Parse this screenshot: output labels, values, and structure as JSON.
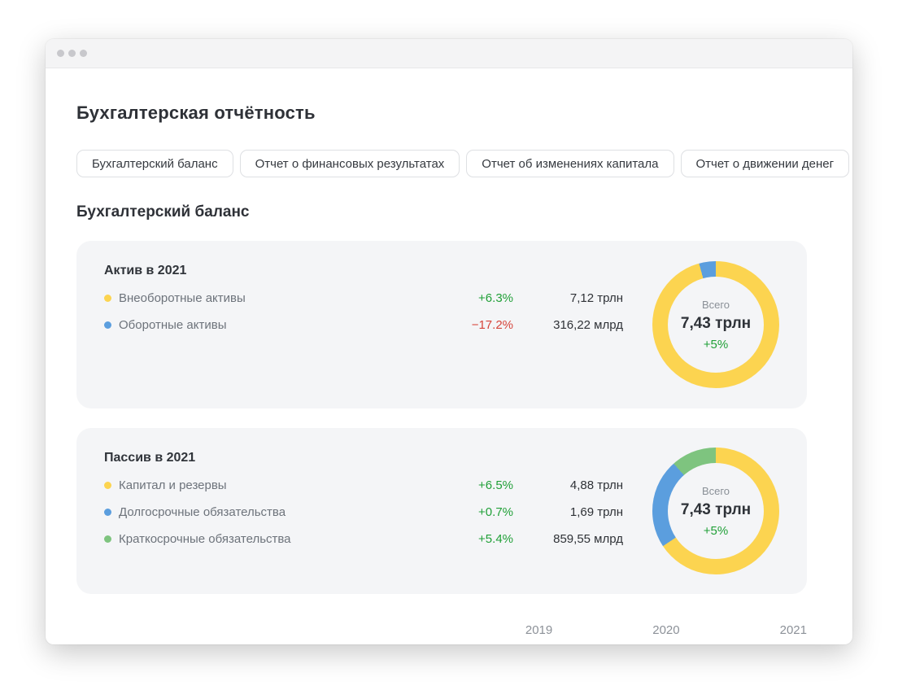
{
  "page": {
    "title": "Бухгалтерская отчётность",
    "section_title": "Бухгалтерский баланс",
    "tabs": [
      {
        "label": "Бухгалтерский баланс"
      },
      {
        "label": "Отчет о финансовых результатах"
      },
      {
        "label": "Отчет об изменениях капитала"
      },
      {
        "label": "Отчет о движении денег"
      }
    ],
    "years": [
      "2019",
      "2020",
      "2021"
    ]
  },
  "colors": {
    "yellow": "#FCD450",
    "blue": "#5B9EDE",
    "green_segment": "#7EC47F",
    "positive": "#21A038",
    "negative": "#D6453B",
    "card_bg": "#F4F5F7"
  },
  "cards": [
    {
      "title": "Актив в 2021",
      "rows": [
        {
          "dot": "#FCD450",
          "label": "Внеоборотные активы",
          "change": "+6.3%",
          "change_color": "#21A038",
          "value": "7,12 трлн"
        },
        {
          "dot": "#5B9EDE",
          "label": "Оборотные активы",
          "change": "−17.2%",
          "change_color": "#D6453B",
          "value": "316,22 млрд"
        }
      ],
      "donut_center": {
        "label": "Всего",
        "value": "7,43 трлн",
        "change": "+5%",
        "change_color": "#21A038"
      }
    },
    {
      "title": "Пассив в 2021",
      "rows": [
        {
          "dot": "#FCD450",
          "label": "Капитал и резервы",
          "change": "+6.5%",
          "change_color": "#21A038",
          "value": "4,88 трлн"
        },
        {
          "dot": "#5B9EDE",
          "label": "Долгосрочные обязательства",
          "change": "+0.7%",
          "change_color": "#21A038",
          "value": "1,69 трлн"
        },
        {
          "dot": "#7EC47F",
          "label": "Краткосрочные обязательства",
          "change": "+5.4%",
          "change_color": "#21A038",
          "value": "859,55 млрд"
        }
      ],
      "donut_center": {
        "label": "Всего",
        "value": "7,43 трлн",
        "change": "+5%",
        "change_color": "#21A038"
      }
    }
  ],
  "chart_data": [
    {
      "type": "pie",
      "title": "Актив в 2021",
      "categories": [
        "Внеоборотные активы",
        "Оборотные активы"
      ],
      "values": [
        7120,
        316.22
      ],
      "unit": "млрд руб",
      "colors": [
        "#FCD450",
        "#5B9EDE"
      ],
      "donut": true,
      "start_angle_deg": 0,
      "direction": "clockwise",
      "center_label": "Всего",
      "center_value": "7,43 трлн",
      "center_change": "+5%",
      "legend_position": "left",
      "changes": [
        "+6.3%",
        "−17.2%"
      ],
      "display_values": [
        "7,12 трлн",
        "316,22 млрд"
      ]
    },
    {
      "type": "pie",
      "title": "Пассив в 2021",
      "categories": [
        "Капитал и резервы",
        "Долгосрочные обязательства",
        "Краткосрочные обязательства"
      ],
      "values": [
        4880,
        1690,
        859.55
      ],
      "unit": "млрд руб",
      "colors": [
        "#FCD450",
        "#5B9EDE",
        "#7EC47F"
      ],
      "donut": true,
      "start_angle_deg": 0,
      "direction": "clockwise",
      "center_label": "Всего",
      "center_value": "7,43 трлн",
      "center_change": "+5%",
      "legend_position": "left",
      "changes": [
        "+6.5%",
        "+0.7%",
        "+5.4%"
      ],
      "display_values": [
        "4,88 трлн",
        "1,69 трлн",
        "859,55 млрд"
      ]
    }
  ]
}
